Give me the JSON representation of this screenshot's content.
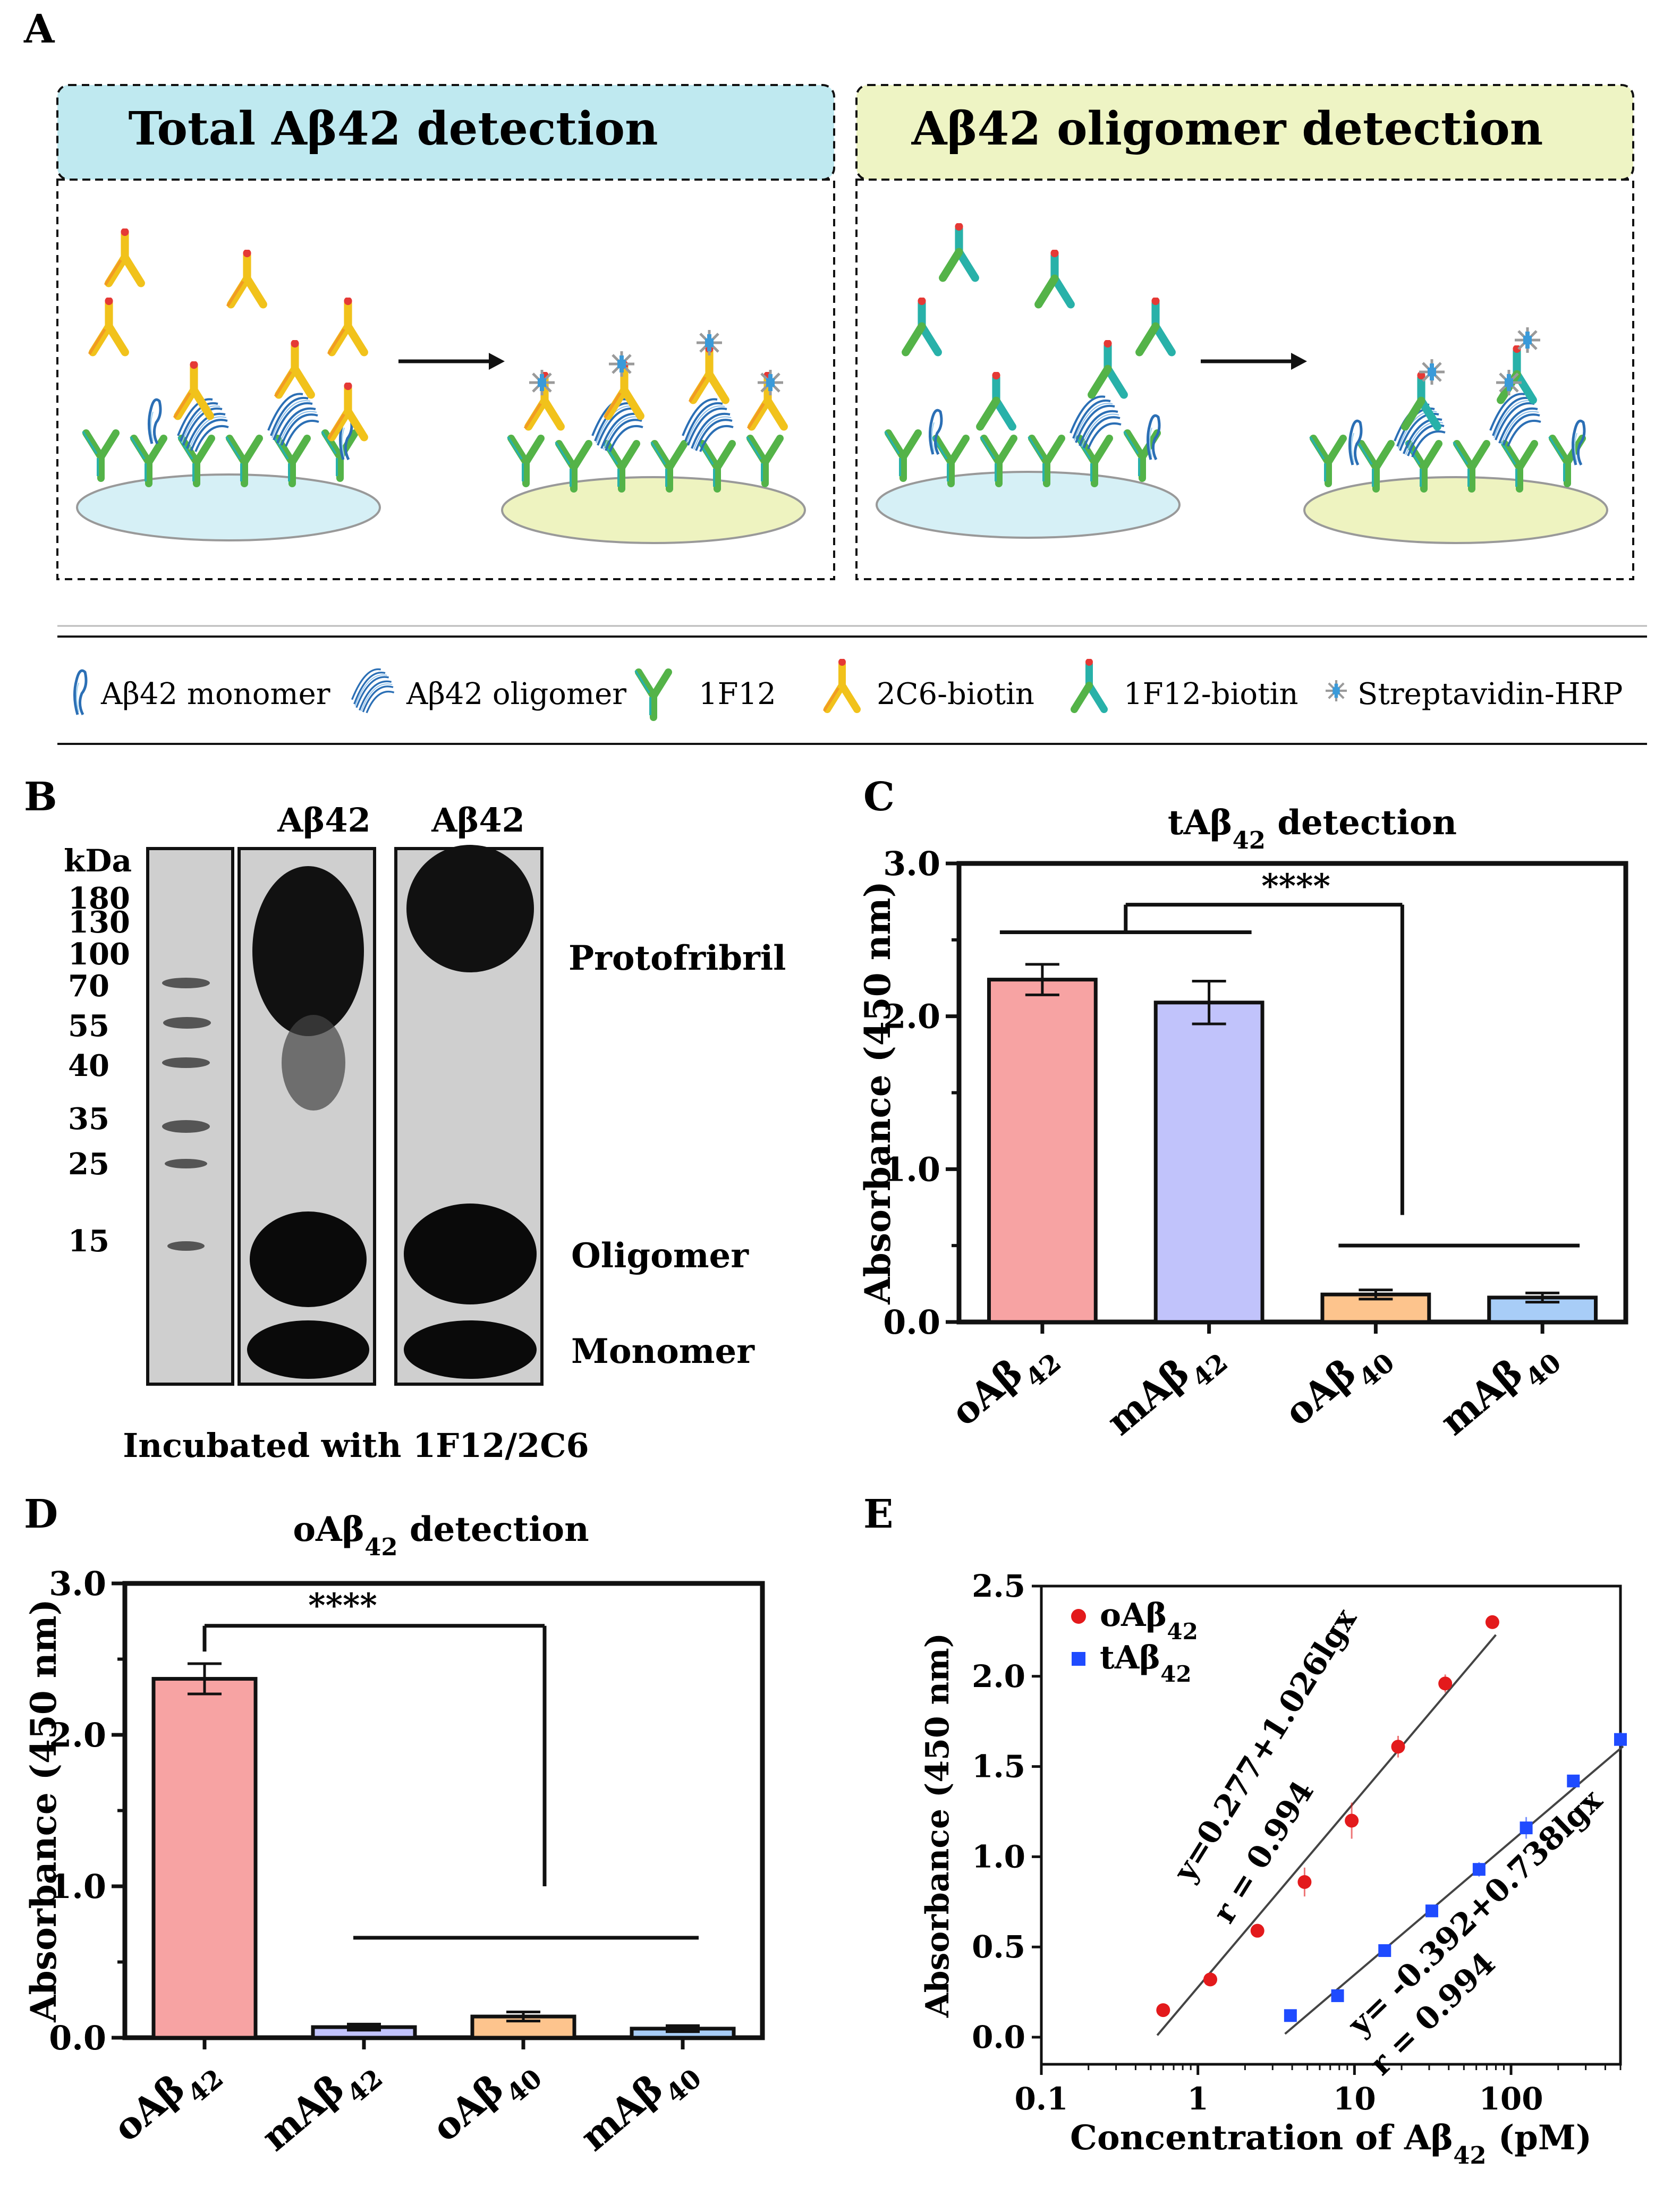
{
  "colors": {
    "total_header": "#bfe9f0",
    "oligomer_header": "#eef4c4",
    "plate_total": "#d6f0f6",
    "plate_olig": "#eef3c0",
    "antibody_green": "#54b348",
    "antibody_teal": "#28b1a9",
    "antibody_yellow": "#f1c21b",
    "antibody_orange": "#f29b22",
    "biotin_red": "#e53935",
    "hrp_blue": "#3a9ad9",
    "oligomer_blue": "#2b6fb5",
    "bar_oab42": "#f7a3a3",
    "bar_mab42": "#c1c3fb",
    "bar_oab40": "#fdc48d",
    "bar_mab40": "#a8cdf7",
    "scatter_oab42": "#e31a1c",
    "scatter_tab42": "#1f4bff"
  },
  "panelA": {
    "label": "A",
    "left_title": "Total Aβ42 detection",
    "right_title": "Aβ42 oligomer detection",
    "legend": [
      {
        "icon": "monomer-icon",
        "label": "Aβ42 monomer"
      },
      {
        "icon": "oligomer-icon",
        "label": "Aβ42 oligomer"
      },
      {
        "icon": "1f12-antibody-icon",
        "label": "1F12"
      },
      {
        "icon": "2c6-biotin-antibody-icon",
        "label": "2C6-biotin"
      },
      {
        "icon": "1f12-biotin-antibody-icon",
        "label": "1F12-biotin"
      },
      {
        "icon": "streptavidin-hrp-icon",
        "label": "Streptavidin-HRP"
      }
    ]
  },
  "panelB": {
    "label": "B",
    "lane_headers": [
      "Aβ42",
      "Aβ42"
    ],
    "kda_title": "kDa",
    "markers": [
      "180",
      "130",
      "100",
      "70",
      "55",
      "40",
      "35",
      "25",
      "15"
    ],
    "band_labels": [
      "Protofribril",
      "Oligomer",
      "Monomer"
    ],
    "caption": "Incubated with 1F12/2C6"
  },
  "chart_data": [
    {
      "panel": "C",
      "type": "bar",
      "title": "tAβ42 detection",
      "ylabel": "Absorbance (450 nm)",
      "categories": [
        "oAβ42",
        "mAβ42",
        "oAβ40",
        "mAβ40"
      ],
      "values": [
        2.24,
        2.09,
        0.18,
        0.16
      ],
      "errors": [
        0.1,
        0.14,
        0.03,
        0.03
      ],
      "ylim": [
        0,
        3.0
      ],
      "yticks": [
        "0.0",
        "1.0",
        "2.0",
        "3.0"
      ],
      "significance": "****"
    },
    {
      "panel": "D",
      "type": "bar",
      "title": "oAβ42 detection",
      "ylabel": "Absorbance (450 nm)",
      "categories": [
        "oAβ42",
        "mAβ42",
        "oAβ40",
        "mAβ40"
      ],
      "values": [
        2.37,
        0.07,
        0.14,
        0.06
      ],
      "errors": [
        0.1,
        0.02,
        0.03,
        0.02
      ],
      "ylim": [
        0,
        3.0
      ],
      "yticks": [
        "0.0",
        "1.0",
        "2.0",
        "3.0"
      ],
      "significance": "****"
    },
    {
      "panel": "E",
      "type": "scatter",
      "xlabel": "Concentration of Aβ42 (pM)",
      "ylabel": "Absorbance (450 nm)",
      "xscale": "log",
      "xlim": [
        0.1,
        500
      ],
      "ylim": [
        -0.15,
        2.5
      ],
      "xticks": [
        "0.1",
        "1",
        "10",
        "100"
      ],
      "yticks": [
        "0.0",
        "0.5",
        "1.0",
        "1.5",
        "2.0",
        "2.5"
      ],
      "legend_position": "top-left",
      "series": [
        {
          "name": "oAβ42",
          "x": [
            0.6,
            1.2,
            2.4,
            4.8,
            9.6,
            19,
            38,
            76
          ],
          "y": [
            0.15,
            0.32,
            0.59,
            0.86,
            1.2,
            1.61,
            1.96,
            2.3
          ],
          "errors": [
            0.02,
            0.02,
            0.03,
            0.08,
            0.1,
            0.06,
            0.05,
            0.03
          ],
          "fit": "y=0.277+1.026lgx",
          "r": "r = 0.994",
          "fit_range": [
            0.55,
            80
          ]
        },
        {
          "name": "tAβ42",
          "x": [
            3.9,
            7.8,
            15.6,
            31.2,
            62.5,
            125,
            250,
            500
          ],
          "y": [
            0.12,
            0.23,
            0.48,
            0.7,
            0.93,
            1.16,
            1.42,
            1.65
          ],
          "errors": [
            0.02,
            0.02,
            0.02,
            0.03,
            0.04,
            0.06,
            0.03,
            0.04
          ],
          "fit": "y= -0.392+0.738lgx",
          "r": "r = 0.994",
          "fit_range": [
            3.6,
            520
          ]
        }
      ]
    }
  ]
}
